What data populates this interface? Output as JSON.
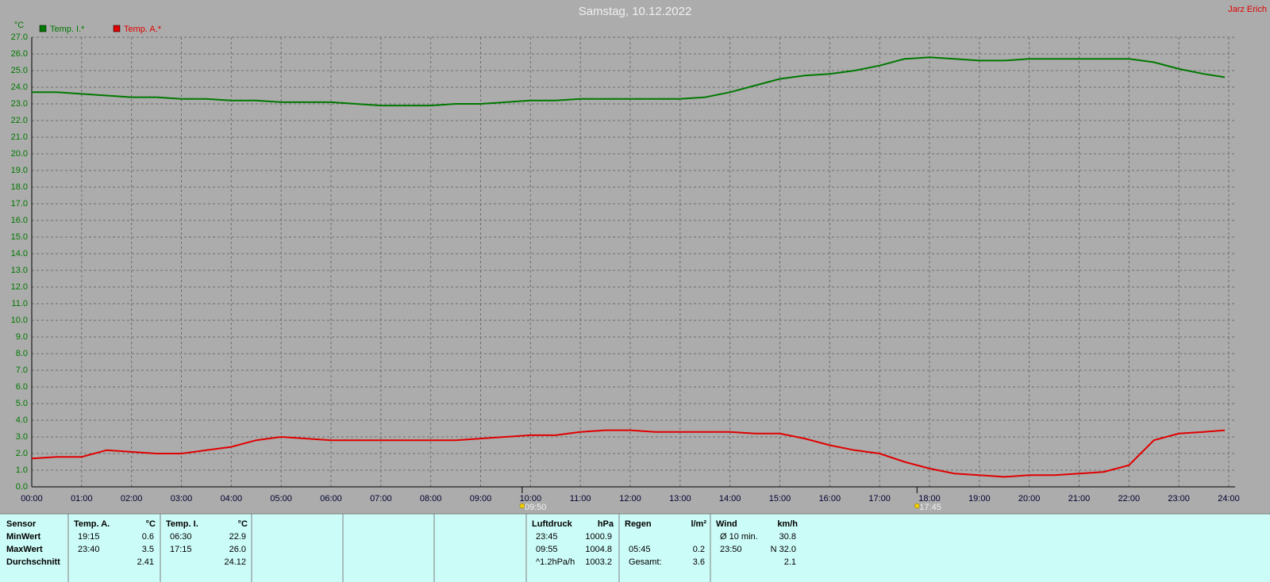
{
  "chart_data": {
    "type": "line",
    "title": "Samstag, 10.12.2022",
    "author": "Jarz Erich",
    "y_unit": "°C",
    "x": [
      0,
      0.5,
      1,
      1.5,
      2,
      2.5,
      3,
      3.5,
      4,
      4.5,
      5,
      5.5,
      6,
      6.5,
      7,
      7.5,
      8,
      8.5,
      9,
      9.5,
      10,
      10.5,
      11,
      11.5,
      12,
      12.5,
      13,
      13.5,
      14,
      14.5,
      15,
      15.5,
      16,
      16.5,
      17,
      17.5,
      18,
      18.5,
      19,
      19.5,
      20,
      20.5,
      21,
      21.5,
      22,
      22.5,
      23,
      23.5,
      23.92
    ],
    "xlim": [
      0,
      24
    ],
    "xticks": [
      {
        "value": 0,
        "label": "00:00"
      },
      {
        "value": 1,
        "label": "01:00"
      },
      {
        "value": 2,
        "label": "02:00"
      },
      {
        "value": 3,
        "label": "03:00"
      },
      {
        "value": 4,
        "label": "04:00"
      },
      {
        "value": 5,
        "label": "05:00"
      },
      {
        "value": 6,
        "label": "06:00"
      },
      {
        "value": 7,
        "label": "07:00"
      },
      {
        "value": 8,
        "label": "08:00"
      },
      {
        "value": 9,
        "label": "09:00"
      },
      {
        "value": 10,
        "label": "10:00"
      },
      {
        "value": 11,
        "label": "11:00"
      },
      {
        "value": 12,
        "label": "12:00"
      },
      {
        "value": 13,
        "label": "13:00"
      },
      {
        "value": 14,
        "label": "14:00"
      },
      {
        "value": 15,
        "label": "15:00"
      },
      {
        "value": 16,
        "label": "16:00"
      },
      {
        "value": 17,
        "label": "17:00"
      },
      {
        "value": 18,
        "label": "18:00"
      },
      {
        "value": 19,
        "label": "19:00"
      },
      {
        "value": 20,
        "label": "20:00"
      },
      {
        "value": 21,
        "label": "21:00"
      },
      {
        "value": 22,
        "label": "22:00"
      },
      {
        "value": 23,
        "label": "23:00"
      },
      {
        "value": 24,
        "label": "24:00"
      }
    ],
    "ylim": [
      0,
      27
    ],
    "yticks": [
      {
        "value": 0,
        "label": "0.0"
      },
      {
        "value": 1,
        "label": "1.0"
      },
      {
        "value": 2,
        "label": "2.0"
      },
      {
        "value": 3,
        "label": "3.0"
      },
      {
        "value": 4,
        "label": "4.0"
      },
      {
        "value": 5,
        "label": "5.0"
      },
      {
        "value": 6,
        "label": "6.0"
      },
      {
        "value": 7,
        "label": "7.0"
      },
      {
        "value": 8,
        "label": "8.0"
      },
      {
        "value": 9,
        "label": "9.0"
      },
      {
        "value": 10,
        "label": "10.0"
      },
      {
        "value": 11,
        "label": "11.0"
      },
      {
        "value": 12,
        "label": "12.0"
      },
      {
        "value": 13,
        "label": "13.0"
      },
      {
        "value": 14,
        "label": "14.0"
      },
      {
        "value": 15,
        "label": "15.0"
      },
      {
        "value": 16,
        "label": "16.0"
      },
      {
        "value": 17,
        "label": "17.0"
      },
      {
        "value": 18,
        "label": "18.0"
      },
      {
        "value": 19,
        "label": "19.0"
      },
      {
        "value": 20,
        "label": "20.0"
      },
      {
        "value": 21,
        "label": "21.0"
      },
      {
        "value": 22,
        "label": "22.0"
      },
      {
        "value": 23,
        "label": "23.0"
      },
      {
        "value": 24,
        "label": "24.0"
      },
      {
        "value": 25,
        "label": "25.0"
      },
      {
        "value": 26,
        "label": "26.0"
      },
      {
        "value": 27,
        "label": "27.0"
      }
    ],
    "grid": true,
    "series": [
      {
        "name": "Temp. I.*",
        "color": "#007800",
        "values": [
          23.7,
          23.7,
          23.6,
          23.5,
          23.4,
          23.4,
          23.3,
          23.3,
          23.2,
          23.2,
          23.1,
          23.1,
          23.1,
          23.0,
          22.9,
          22.9,
          22.9,
          23.0,
          23.0,
          23.1,
          23.2,
          23.2,
          23.3,
          23.3,
          23.3,
          23.3,
          23.3,
          23.4,
          23.7,
          24.1,
          24.5,
          24.7,
          24.8,
          25.0,
          25.3,
          25.7,
          25.8,
          25.7,
          25.6,
          25.6,
          25.7,
          25.7,
          25.7,
          25.7,
          25.7,
          25.5,
          25.1,
          24.8,
          24.6
        ]
      },
      {
        "name": "Temp. A.*",
        "color": "#e00000",
        "values": [
          1.7,
          1.8,
          1.8,
          2.2,
          2.1,
          2.0,
          2.0,
          2.2,
          2.4,
          2.8,
          3.0,
          2.9,
          2.8,
          2.8,
          2.8,
          2.8,
          2.8,
          2.8,
          2.9,
          3.0,
          3.1,
          3.1,
          3.3,
          3.4,
          3.4,
          3.3,
          3.3,
          3.3,
          3.3,
          3.2,
          3.2,
          2.9,
          2.5,
          2.2,
          2.0,
          1.5,
          1.1,
          0.8,
          0.7,
          0.6,
          0.7,
          0.7,
          0.8,
          0.9,
          1.3,
          2.8,
          3.2,
          3.3,
          3.4
        ]
      }
    ],
    "markers": [
      {
        "x": 9.8333,
        "label": "09:50"
      },
      {
        "x": 17.75,
        "label": "17:45"
      }
    ]
  },
  "stats": {
    "row_labels": {
      "header": "Sensor",
      "min": "MinWert",
      "max": "MaxWert",
      "avg": "Durchschnitt"
    },
    "panels": [
      {
        "name": "Temp. A.",
        "unit": "°C",
        "min": {
          "label": "19:15",
          "value": "0.6"
        },
        "max": {
          "label": "23:40",
          "value": "3.5"
        },
        "avg": {
          "value": "2.41"
        }
      },
      {
        "name": "Temp. I.",
        "unit": "°C",
        "min": {
          "label": "06:30",
          "value": "22.9"
        },
        "max": {
          "label": "17:15",
          "value": "26.0"
        },
        "avg": {
          "value": "24.12"
        }
      },
      {
        "name": "Luftdruck",
        "unit": "hPa",
        "min": {
          "label": "23:45",
          "value": "1000.9"
        },
        "max": {
          "label": "09:55",
          "value": "1004.8"
        },
        "avg": {
          "label": "^1.2hPa/h",
          "value": "1003.2"
        }
      },
      {
        "name": "Regen",
        "unit": "l/m²",
        "max": {
          "label": "05:45",
          "value": "0.2"
        },
        "avg": {
          "label": "Gesamt:",
          "value": "3.6"
        }
      },
      {
        "name": "Wind",
        "unit": "km/h",
        "min": {
          "label": "Ø 10 min.",
          "value": "30.8"
        },
        "max": {
          "label": "23:50",
          "value": "N 32.0"
        },
        "avg": {
          "value": "2.1"
        }
      }
    ]
  }
}
